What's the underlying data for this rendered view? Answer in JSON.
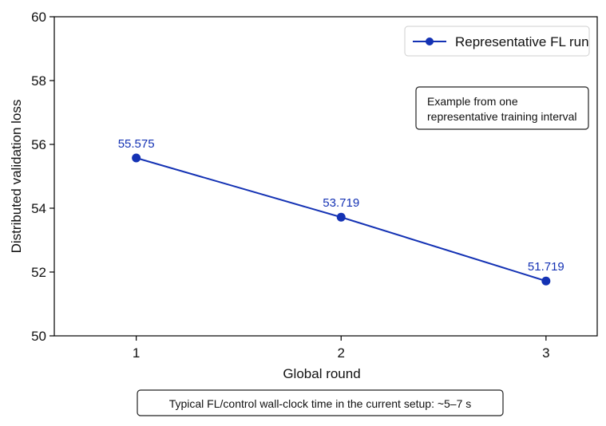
{
  "chart_data": {
    "type": "line",
    "xlabel": "Global round",
    "ylabel": "Distributed validation loss",
    "x": [
      1,
      2,
      3
    ],
    "xlim": [
      0.6,
      3.25
    ],
    "ylim": [
      50,
      60
    ],
    "x_ticks": [
      "1",
      "2",
      "3"
    ],
    "y_ticks": [
      "50",
      "52",
      "54",
      "56",
      "58",
      "60"
    ],
    "grid": false,
    "legend_position": "top-right",
    "series": [
      {
        "name": "Representative FL run",
        "values": [
          55.575,
          53.719,
          51.719
        ],
        "labels": [
          "55.575",
          "53.719",
          "51.719"
        ]
      }
    ],
    "annotation_lines": [
      "Example from one",
      "representative training interval"
    ],
    "footer_note": "Typical FL/control wall-clock time in the current setup: ~5–7 s"
  },
  "colors": {
    "series": "#1432b4",
    "axis": "#000000",
    "text": "#111111"
  }
}
